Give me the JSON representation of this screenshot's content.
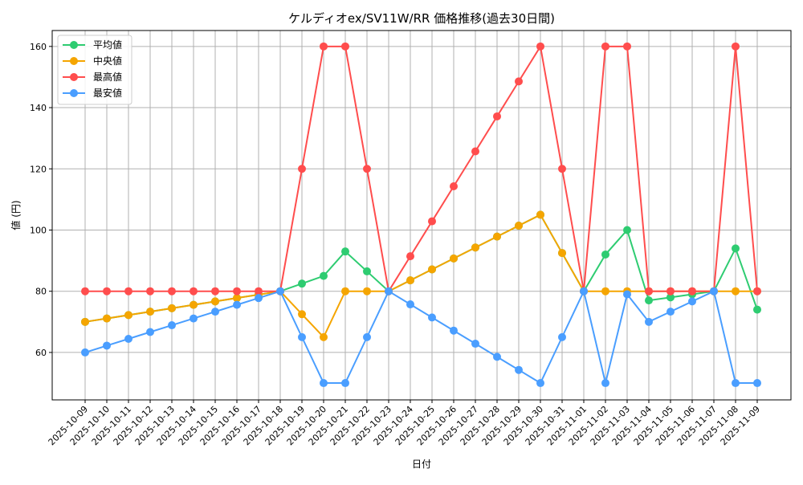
{
  "chart_data": {
    "type": "line",
    "title": "ケルディオex/SV11W/RR 価格推移(過去30日間)",
    "xlabel": "日付",
    "ylabel": "値 (円)",
    "ylim": [
      44.5,
      165.2
    ],
    "yticks": [
      60,
      80,
      100,
      120,
      140,
      160
    ],
    "grid": true,
    "legend": "top-left",
    "x": [
      "2025-10-09",
      "2025-10-10",
      "2025-10-11",
      "2025-10-12",
      "2025-10-13",
      "2025-10-14",
      "2025-10-15",
      "2025-10-16",
      "2025-10-17",
      "2025-10-18",
      "2025-10-19",
      "2025-10-20",
      "2025-10-21",
      "2025-10-22",
      "2025-10-23",
      "2025-10-24",
      "2025-10-25",
      "2025-10-26",
      "2025-10-27",
      "2025-10-28",
      "2025-10-29",
      "2025-10-30",
      "2025-10-31",
      "2025-11-01",
      "2025-11-02",
      "2025-11-03",
      "2025-11-04",
      "2025-11-05",
      "2025-11-06",
      "2025-11-07",
      "2025-11-08",
      "2025-11-09"
    ],
    "series": [
      {
        "name": "平均値",
        "color": "#2ecc71",
        "values": [
          70,
          71.11,
          72.22,
          73.33,
          74.44,
          75.56,
          76.67,
          77.78,
          78.89,
          80,
          82.5,
          85,
          93,
          86.5,
          80,
          83.57,
          87.14,
          90.71,
          94.29,
          97.86,
          101.43,
          105,
          92.5,
          80,
          92,
          100,
          77,
          78,
          79,
          80,
          94,
          74
        ]
      },
      {
        "name": "中央値",
        "color": "#f5a500",
        "values": [
          70,
          71.11,
          72.22,
          73.33,
          74.44,
          75.56,
          76.67,
          77.78,
          78.89,
          80,
          72.5,
          65,
          80,
          80,
          80,
          83.57,
          87.14,
          90.71,
          94.29,
          97.86,
          101.43,
          105,
          92.5,
          80,
          80,
          80,
          80,
          80,
          80,
          80,
          80,
          80
        ]
      },
      {
        "name": "最高値",
        "color": "#ff4d4d",
        "values": [
          80,
          80,
          80,
          80,
          80,
          80,
          80,
          80,
          80,
          80,
          120,
          160,
          160,
          120,
          80,
          91.43,
          102.86,
          114.29,
          125.71,
          137.14,
          148.57,
          160,
          120,
          80,
          160,
          160,
          80,
          80,
          80,
          80,
          160,
          80
        ]
      },
      {
        "name": "最安値",
        "color": "#4a9eff",
        "values": [
          60,
          62.22,
          64.44,
          66.67,
          68.89,
          71.11,
          73.33,
          75.56,
          77.78,
          80,
          65,
          50,
          50,
          65,
          80,
          75.71,
          71.43,
          67.14,
          62.86,
          58.57,
          54.29,
          50,
          65,
          80,
          50,
          79,
          70,
          73.33,
          76.67,
          80,
          50,
          50
        ]
      }
    ]
  }
}
